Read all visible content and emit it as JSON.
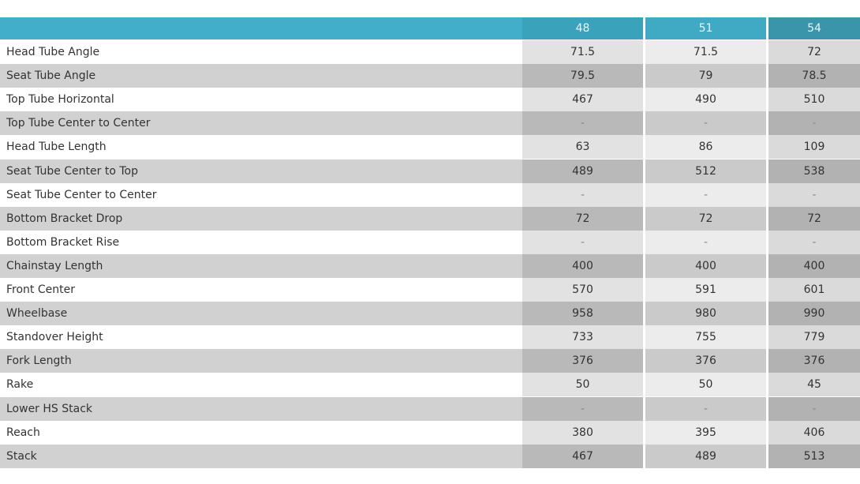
{
  "table": {
    "columns": [
      "48",
      "51",
      "54"
    ],
    "rows": [
      [
        "Head Tube Angle",
        "71.5",
        "71.5",
        "72"
      ],
      [
        "Seat Tube Angle",
        "79.5",
        "79",
        "78.5"
      ],
      [
        "Top Tube Horizontal",
        "467",
        "490",
        "510"
      ],
      [
        "Top Tube Center to Center",
        "-",
        "-",
        "-"
      ],
      [
        "Head Tube Length",
        "63",
        "86",
        "109"
      ],
      [
        "Seat Tube Center to Top",
        "489",
        "512",
        "538"
      ],
      [
        "Seat Tube Center to Center",
        "-",
        "-",
        "-"
      ],
      [
        "Bottom Bracket Drop",
        "72",
        "72",
        "72"
      ],
      [
        "Bottom Bracket Rise",
        "-",
        "-",
        "-"
      ],
      [
        "Chainstay Length",
        "400",
        "400",
        "400"
      ],
      [
        "Front Center",
        "570",
        "591",
        "601"
      ],
      [
        "Wheelbase",
        "958",
        "980",
        "990"
      ],
      [
        "Standover Height",
        "733",
        "755",
        "779"
      ],
      [
        "Fork Length",
        "376",
        "376",
        "376"
      ],
      [
        "Rake",
        "50",
        "50",
        "45"
      ],
      [
        "Lower HS Stack",
        "-",
        "-",
        "-"
      ],
      [
        "Reach",
        "380",
        "395",
        "406"
      ],
      [
        "Stack",
        "467",
        "489",
        "513"
      ]
    ]
  }
}
